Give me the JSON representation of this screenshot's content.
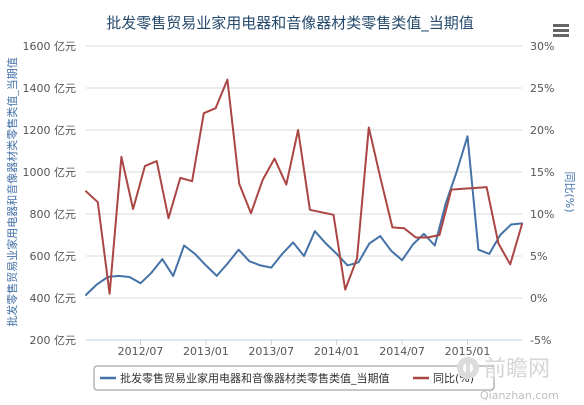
{
  "chart_data": {
    "type": "line",
    "title": "批发零售贸易业家用电器和音像器材类零售类值_当期值",
    "ylabel_left": "批发零售贸易业家用电器和音像器材类零售类值_当期值",
    "ylabel_right": "同比(%)",
    "y_left": {
      "min": 200,
      "max": 1600,
      "ticks": [
        200,
        400,
        600,
        800,
        1000,
        1200,
        1400,
        1600
      ],
      "tick_labels": [
        "200 亿元",
        "400 亿元",
        "600 亿元",
        "800 亿元",
        "1000 亿元",
        "1200 亿元",
        "1400 亿元",
        "1600 亿元"
      ]
    },
    "y_right": {
      "min": -5,
      "max": 30,
      "ticks": [
        -5,
        0,
        5,
        10,
        15,
        20,
        25,
        30
      ],
      "tick_labels": [
        "-5%",
        "0%",
        "5%",
        "10%",
        "15%",
        "20%",
        "25%",
        "30%"
      ]
    },
    "x_tick_labels": [
      "2012/07",
      "2013/01",
      "2013/07",
      "2014/01",
      "2014/07",
      "2015/01"
    ],
    "x_tick_index": [
      5,
      11,
      17,
      23,
      29,
      35
    ],
    "grid": "horizontal",
    "legend_position": "bottom",
    "series": [
      {
        "name": "批发零售贸易业家用电器和音像器材类零售类值_当期值",
        "axis": "left",
        "color": "#4572a7",
        "values": [
          415,
          465,
          500,
          505,
          500,
          470,
          520,
          585,
          505,
          650,
          610,
          555,
          505,
          565,
          630,
          575,
          555,
          545,
          610,
          665,
          600,
          718,
          660,
          610,
          555,
          570,
          660,
          695,
          625,
          580,
          655,
          705,
          650,
          850,
          1000,
          1170,
          630,
          610,
          700,
          750,
          755
        ]
      },
      {
        "name": "同比(%)",
        "axis": "right",
        "color": "#aa4643",
        "values": [
          12.7,
          11.4,
          0.5,
          16.8,
          10.6,
          15.7,
          16.3,
          9.5,
          14.3,
          13.9,
          22.0,
          22.6,
          26.0,
          13.6,
          10.1,
          14.1,
          16.6,
          13.5,
          20.0,
          10.5,
          10.2,
          9.9,
          1.0,
          4.7,
          20.3,
          14.2,
          8.4,
          8.3,
          7.2,
          7.2,
          7.5,
          12.9,
          13.0,
          13.1,
          13.2,
          6.5,
          4.0,
          8.8
        ]
      }
    ]
  },
  "series_x_positions": {
    "note": "index positions on the shared monthly axis",
    "s1_start_index": 0,
    "s2_start_index": 0
  },
  "toolbar": {
    "menu_icon": "hamburger-menu-icon"
  },
  "watermark": {
    "brand": "前瞻网",
    "url": "Qianzhan.com"
  }
}
